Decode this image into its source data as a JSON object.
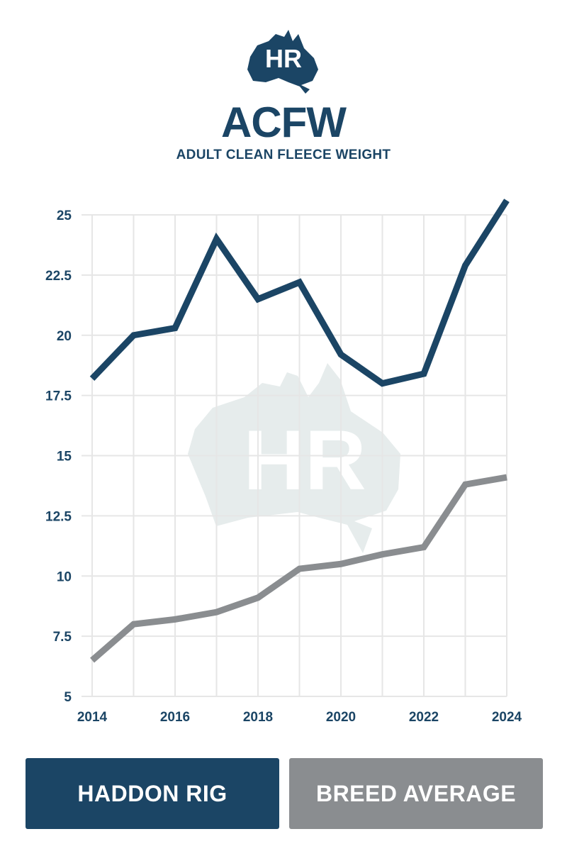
{
  "logo": {
    "text": "HR",
    "icon": "australia-map-icon"
  },
  "header": {
    "title": "ACFW",
    "subtitle": "ADULT CLEAN FLEECE WEIGHT"
  },
  "colors": {
    "primary": "#1b4565",
    "secondary": "#8a8d90",
    "grid": "#e6e6e6",
    "watermark": "#e6ecec"
  },
  "legend": {
    "haddon_label": "HADDON RIG",
    "breed_label": "BREED AVERAGE"
  },
  "chart_data": {
    "type": "line",
    "title": "ACFW",
    "subtitle": "ADULT CLEAN FLEECE WEIGHT",
    "xlabel": "",
    "ylabel": "",
    "x": [
      2014,
      2015,
      2016,
      2017,
      2018,
      2019,
      2020,
      2021,
      2022,
      2023,
      2024
    ],
    "xticks": [
      "2014",
      "2016",
      "2018",
      "2020",
      "2022",
      "2024"
    ],
    "yticks": [
      "5",
      "7.5",
      "10",
      "12.5",
      "15",
      "17.5",
      "20",
      "22.5",
      "25"
    ],
    "ylim": [
      5,
      25
    ],
    "grid": true,
    "legend_position": "bottom",
    "series": [
      {
        "name": "HADDON RIG",
        "color": "#1b4565",
        "values": [
          18.2,
          20.0,
          20.3,
          24.0,
          21.5,
          22.2,
          19.2,
          18.0,
          18.4,
          22.9,
          25.6
        ]
      },
      {
        "name": "BREED AVERAGE",
        "color": "#8a8d90",
        "values": [
          6.5,
          8.0,
          8.2,
          8.5,
          9.1,
          10.3,
          10.5,
          10.9,
          11.2,
          13.8,
          14.1
        ]
      }
    ]
  }
}
